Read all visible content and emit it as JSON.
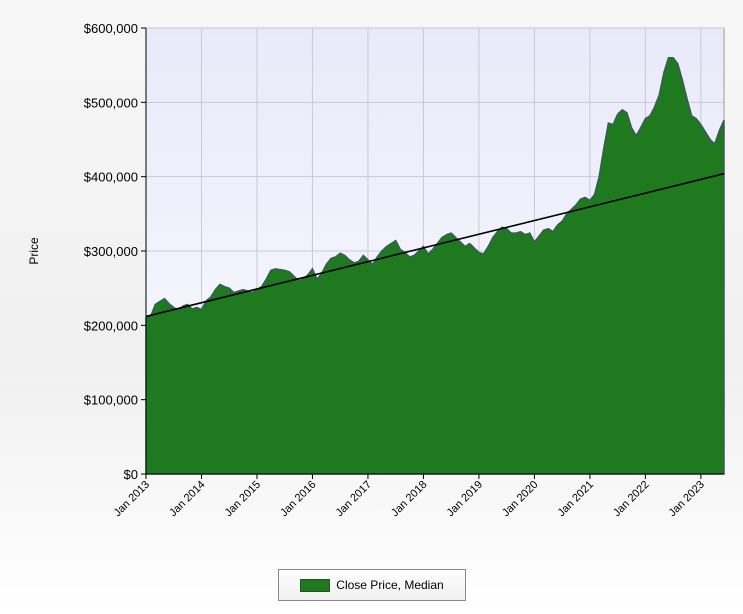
{
  "chart_data": {
    "type": "area",
    "title": "",
    "xlabel": "",
    "ylabel": "Price",
    "x_tick_labels": [
      "Jan 2013",
      "Jan 2014",
      "Jan 2015",
      "Jan 2016",
      "Jan 2017",
      "Jan 2018",
      "Jan 2019",
      "Jan 2020",
      "Jan 2021",
      "Jan 2022",
      "Jan 2023"
    ],
    "y_tick_labels": [
      "$0",
      "$100,000",
      "$200,000",
      "$300,000",
      "$400,000",
      "$500,000",
      "$600,000"
    ],
    "ylim": [
      0,
      600000
    ],
    "xlim": [
      "Jan 2013",
      "Jun 2023"
    ],
    "grid": true,
    "legend_position": "bottom-center",
    "series": [
      {
        "name": "Close Price, Median",
        "color": "#1f7a1f",
        "points": [
          [
            "2013-01",
            210000
          ],
          [
            "2013-02",
            212000
          ],
          [
            "2013-03",
            228000
          ],
          [
            "2013-04",
            232000
          ],
          [
            "2013-05",
            236000
          ],
          [
            "2013-06",
            229000
          ],
          [
            "2013-07",
            224000
          ],
          [
            "2013-08",
            220000
          ],
          [
            "2013-09",
            226000
          ],
          [
            "2013-10",
            228000
          ],
          [
            "2013-11",
            222000
          ],
          [
            "2013-12",
            224000
          ],
          [
            "2014-01",
            221000
          ],
          [
            "2014-02",
            233000
          ],
          [
            "2014-03",
            238000
          ],
          [
            "2014-04",
            248000
          ],
          [
            "2014-05",
            255000
          ],
          [
            "2014-06",
            252000
          ],
          [
            "2014-07",
            250000
          ],
          [
            "2014-08",
            244000
          ],
          [
            "2014-09",
            246000
          ],
          [
            "2014-10",
            248000
          ],
          [
            "2014-11",
            246000
          ],
          [
            "2014-12",
            244000
          ],
          [
            "2015-01",
            248000
          ],
          [
            "2015-02",
            252000
          ],
          [
            "2015-03",
            262000
          ],
          [
            "2015-04",
            274000
          ],
          [
            "2015-05",
            276000
          ],
          [
            "2015-06",
            275000
          ],
          [
            "2015-07",
            274000
          ],
          [
            "2015-08",
            272000
          ],
          [
            "2015-09",
            266000
          ],
          [
            "2015-10",
            260000
          ],
          [
            "2015-11",
            262000
          ],
          [
            "2015-12",
            268000
          ],
          [
            "2016-01",
            276000
          ],
          [
            "2016-02",
            262000
          ],
          [
            "2016-03",
            270000
          ],
          [
            "2016-04",
            282000
          ],
          [
            "2016-05",
            290000
          ],
          [
            "2016-06",
            292000
          ],
          [
            "2016-07",
            297000
          ],
          [
            "2016-08",
            294000
          ],
          [
            "2016-09",
            288000
          ],
          [
            "2016-10",
            284000
          ],
          [
            "2016-11",
            286000
          ],
          [
            "2016-12",
            294000
          ],
          [
            "2017-01",
            288000
          ],
          [
            "2017-02",
            282000
          ],
          [
            "2017-03",
            292000
          ],
          [
            "2017-04",
            300000
          ],
          [
            "2017-05",
            306000
          ],
          [
            "2017-06",
            310000
          ],
          [
            "2017-07",
            314000
          ],
          [
            "2017-08",
            302000
          ],
          [
            "2017-09",
            298000
          ],
          [
            "2017-10",
            292000
          ],
          [
            "2017-11",
            294000
          ],
          [
            "2017-12",
            300000
          ],
          [
            "2018-01",
            306000
          ],
          [
            "2018-02",
            296000
          ],
          [
            "2018-03",
            302000
          ],
          [
            "2018-04",
            310000
          ],
          [
            "2018-05",
            318000
          ],
          [
            "2018-06",
            322000
          ],
          [
            "2018-07",
            324000
          ],
          [
            "2018-08",
            318000
          ],
          [
            "2018-09",
            312000
          ],
          [
            "2018-10",
            306000
          ],
          [
            "2018-11",
            310000
          ],
          [
            "2018-12",
            304000
          ],
          [
            "2019-01",
            298000
          ],
          [
            "2019-02",
            296000
          ],
          [
            "2019-03",
            306000
          ],
          [
            "2019-04",
            318000
          ],
          [
            "2019-05",
            326000
          ],
          [
            "2019-06",
            332000
          ],
          [
            "2019-07",
            330000
          ],
          [
            "2019-08",
            324000
          ],
          [
            "2019-09",
            324000
          ],
          [
            "2019-10",
            326000
          ],
          [
            "2019-11",
            322000
          ],
          [
            "2019-12",
            324000
          ],
          [
            "2020-01",
            312000
          ],
          [
            "2020-02",
            320000
          ],
          [
            "2020-03",
            328000
          ],
          [
            "2020-04",
            330000
          ],
          [
            "2020-05",
            326000
          ],
          [
            "2020-06",
            335000
          ],
          [
            "2020-07",
            340000
          ],
          [
            "2020-08",
            350000
          ],
          [
            "2020-09",
            356000
          ],
          [
            "2020-10",
            362000
          ],
          [
            "2020-11",
            370000
          ],
          [
            "2020-12",
            372000
          ],
          [
            "2021-01",
            368000
          ],
          [
            "2021-02",
            376000
          ],
          [
            "2021-03",
            400000
          ],
          [
            "2021-04",
            438000
          ],
          [
            "2021-05",
            472000
          ],
          [
            "2021-06",
            470000
          ],
          [
            "2021-07",
            484000
          ],
          [
            "2021-08",
            490000
          ],
          [
            "2021-09",
            486000
          ],
          [
            "2021-10",
            466000
          ],
          [
            "2021-11",
            455000
          ],
          [
            "2021-12",
            466000
          ],
          [
            "2022-01",
            478000
          ],
          [
            "2022-02",
            482000
          ],
          [
            "2022-03",
            494000
          ],
          [
            "2022-04",
            510000
          ],
          [
            "2022-05",
            540000
          ],
          [
            "2022-06",
            560000
          ],
          [
            "2022-07",
            560000
          ],
          [
            "2022-08",
            552000
          ],
          [
            "2022-09",
            530000
          ],
          [
            "2022-10",
            505000
          ],
          [
            "2022-11",
            482000
          ],
          [
            "2022-12",
            478000
          ],
          [
            "2023-01",
            470000
          ],
          [
            "2023-02",
            460000
          ],
          [
            "2023-03",
            450000
          ],
          [
            "2023-04",
            444000
          ],
          [
            "2023-05",
            462000
          ],
          [
            "2023-06",
            476000
          ]
        ]
      }
    ],
    "trendline": {
      "start": [
        "2013-01",
        212000
      ],
      "end": [
        "2023-06",
        404000
      ],
      "color": "#000000"
    }
  },
  "legend": {
    "label": "Close Price, Median"
  }
}
